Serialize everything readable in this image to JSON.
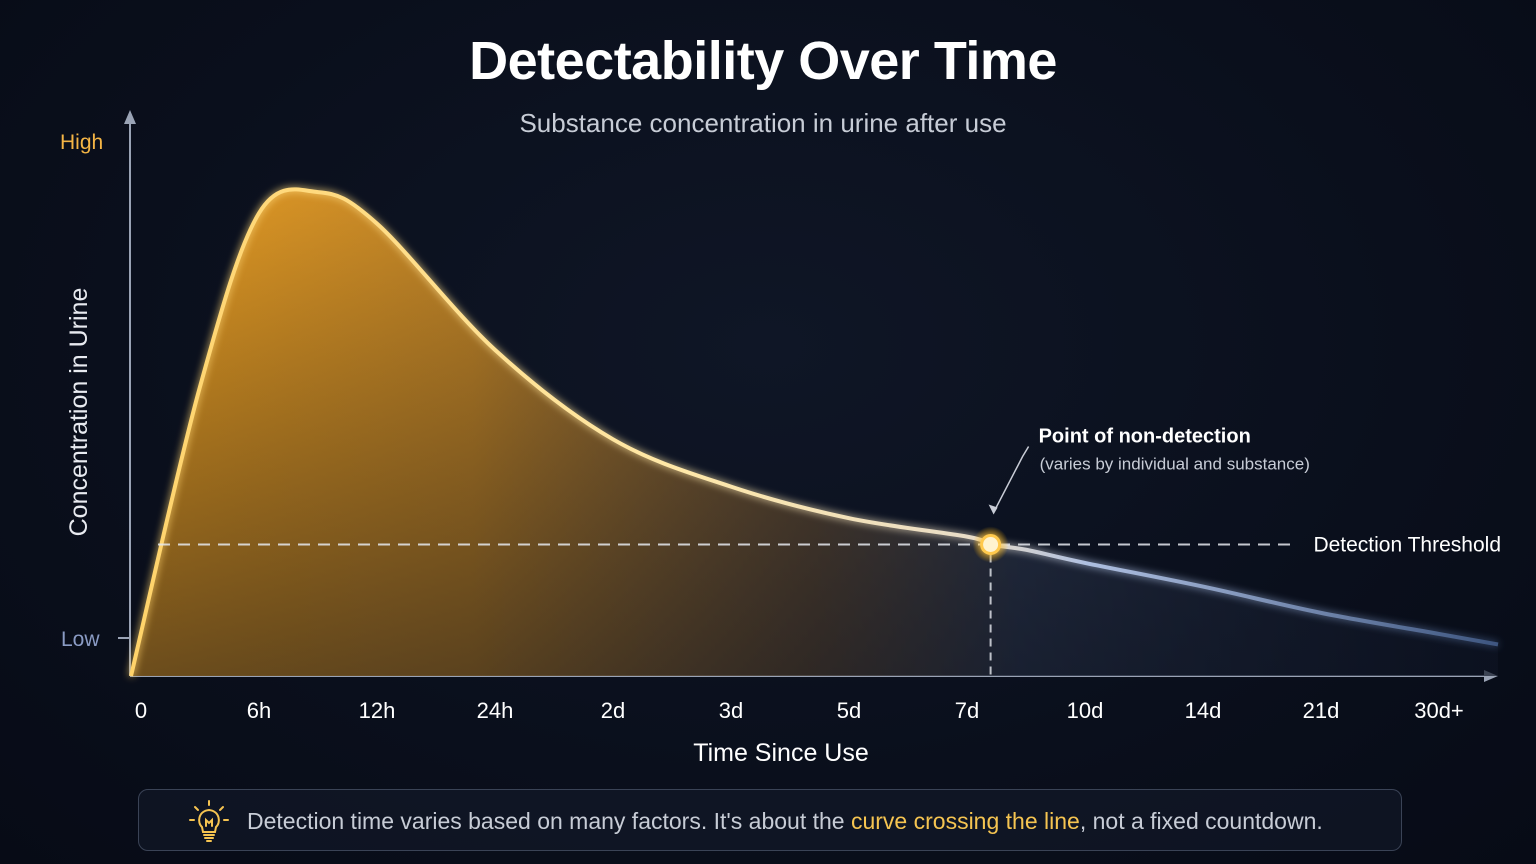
{
  "chart_data": {
    "type": "area",
    "title": "Detectability Over Time",
    "subtitle": "Substance concentration in urine after use",
    "xlabel": "Time Since Use",
    "ylabel": "Concentration in Urine",
    "x_ticks": [
      "0",
      "6h",
      "12h",
      "24h",
      "2d",
      "3d",
      "5d",
      "7d",
      "10d",
      "14d",
      "21d",
      "30d+"
    ],
    "y_ticks": [
      "High",
      "Low"
    ],
    "curve": {
      "x": [
        0,
        0.5,
        1,
        1.5,
        2,
        3,
        4,
        5,
        6,
        7,
        7.2,
        7.5,
        8,
        9,
        10,
        11,
        11.5
      ],
      "y": [
        0.0,
        0.55,
        0.88,
        0.92,
        0.86,
        0.62,
        0.45,
        0.36,
        0.3,
        0.265,
        0.25,
        0.24,
        0.215,
        0.17,
        0.12,
        0.08,
        0.06
      ]
    },
    "threshold": {
      "label": "Detection Threshold",
      "y": 0.25
    },
    "annotation": {
      "title": "Point of non-detection",
      "subtitle": "(varies by individual and substance)",
      "x": 7.2,
      "y": 0.25
    },
    "colors": {
      "above_threshold": "#f5a623",
      "below_threshold": "#7f9ac8",
      "axis": "#9aa3b5",
      "high_label": "#f5b545",
      "low_label": "#8a9bc4"
    }
  },
  "footer": {
    "icon": "lightbulb-icon",
    "text_before": "Detection time varies based on many factors.  It's about the ",
    "text_highlight": "curve crossing the line",
    "text_after": ", not a fixed countdown."
  }
}
